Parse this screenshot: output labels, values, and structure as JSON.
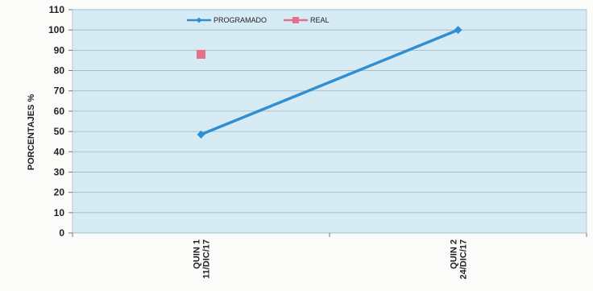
{
  "chart_data": {
    "type": "line",
    "title": "",
    "xlabel": "",
    "ylabel": "PORCENTAJES %",
    "ylim": [
      0,
      110
    ],
    "yticks": [
      0,
      10,
      20,
      30,
      40,
      50,
      60,
      70,
      80,
      90,
      100,
      110
    ],
    "categories": [
      "QUIN 1\n11/DIC/17",
      "QUIN 2\n24/DIC/17"
    ],
    "grid": true,
    "legend_position": "top",
    "series": [
      {
        "name": "PROGRAMADO",
        "color": "#2f8fd1",
        "marker": "diamond",
        "values": [
          48.5,
          100
        ]
      },
      {
        "name": "REAL",
        "color": "#e5708a",
        "marker": "square",
        "values": [
          88,
          null
        ]
      }
    ]
  }
}
